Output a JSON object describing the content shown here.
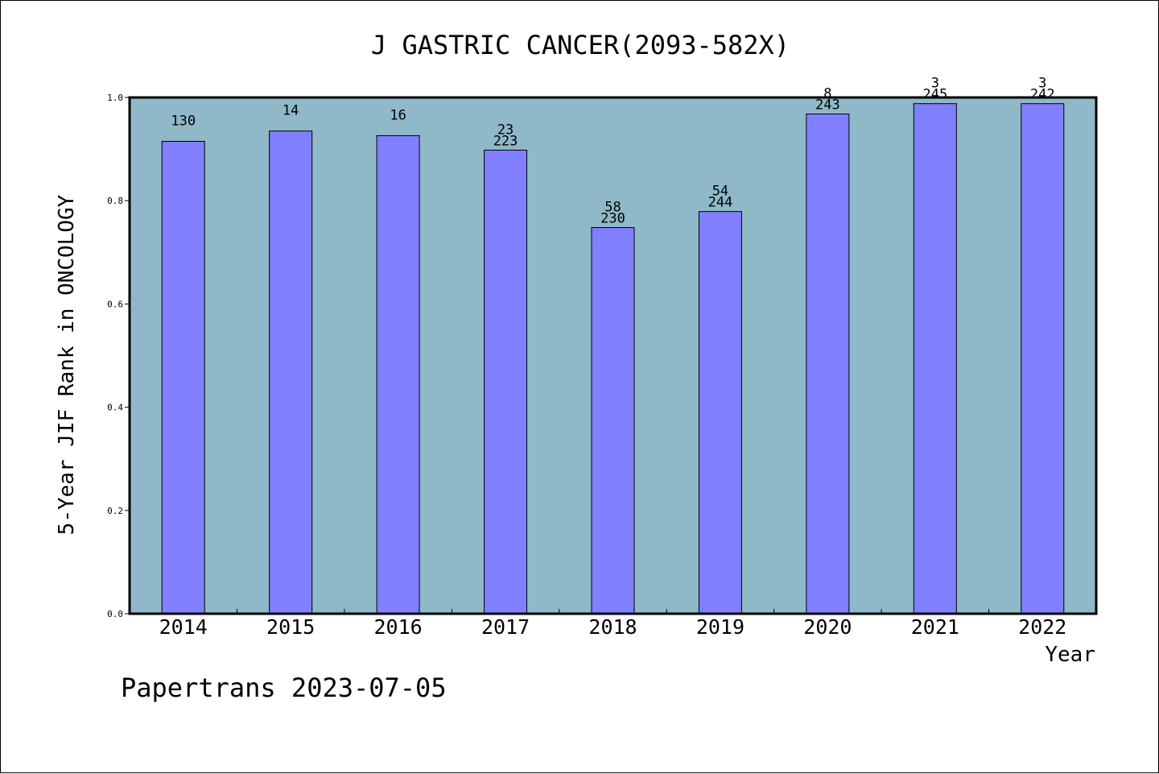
{
  "chart_data": {
    "type": "bar",
    "title": "J GASTRIC CANCER(2093-582X)",
    "xlabel": "Year",
    "ylabel": "5-Year JIF Rank in ONCOLOGY",
    "ylim": [
      0,
      1.0
    ],
    "yticks": [
      "0.0",
      "0.2",
      "0.4",
      "0.6",
      "0.8",
      "1.0"
    ],
    "categories": [
      "2014",
      "2015",
      "2016",
      "2017",
      "2018",
      "2019",
      "2020",
      "2021",
      "2022"
    ],
    "values": [
      0.915,
      0.935,
      0.926,
      0.898,
      0.748,
      0.779,
      0.968,
      0.988,
      0.988
    ],
    "labels_top": [
      "",
      "",
      "",
      "23",
      "58",
      "54",
      "8",
      "3",
      "3"
    ],
    "labels_bottom": [
      "130",
      "14",
      "16",
      "223",
      "230",
      "244",
      "243",
      "245",
      "242"
    ],
    "grid": false,
    "colors": {
      "plot_background": "#8fb8c8",
      "bar_fill": "#8080ff",
      "bar_stroke": "#000000"
    }
  },
  "footer": "Papertrans 2023-07-05"
}
